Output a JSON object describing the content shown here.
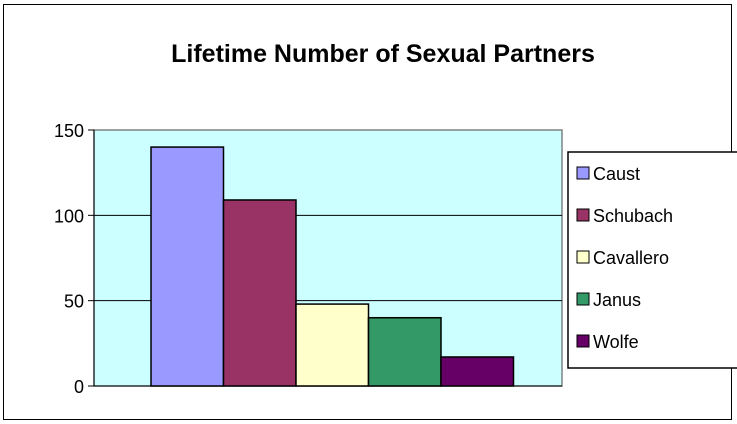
{
  "chart_data": {
    "type": "bar",
    "title": "Lifetime Number of Sexual Partners",
    "xlabel": "",
    "ylabel": "",
    "ylim": [
      0,
      150
    ],
    "yticks": [
      0,
      50,
      100,
      150
    ],
    "grid": true,
    "legend_position": "right",
    "plot_background": "#ccffff",
    "series": [
      {
        "name": "Caust",
        "value": 140,
        "color": "#9999ff"
      },
      {
        "name": "Schubach",
        "value": 109,
        "color": "#993366"
      },
      {
        "name": "Cavallero",
        "value": 48,
        "color": "#ffffcc"
      },
      {
        "name": "Janus",
        "value": 40,
        "color": "#339966"
      },
      {
        "name": "Wolfe",
        "value": 17,
        "color": "#660066"
      }
    ]
  }
}
